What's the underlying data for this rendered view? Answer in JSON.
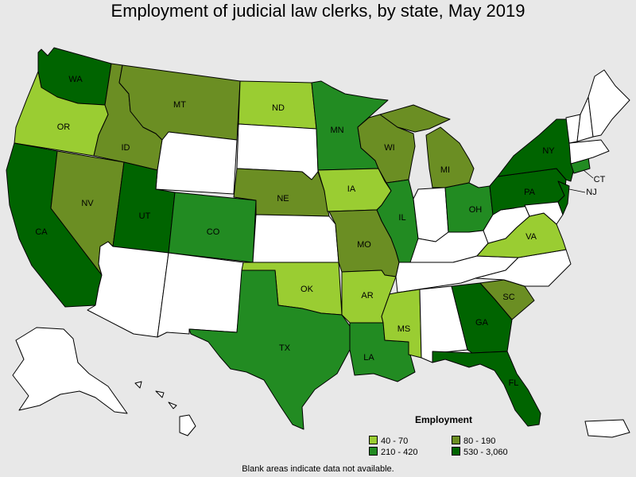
{
  "title": "Employment of judicial law clerks, by state, May 2019",
  "legend": {
    "title": "Employment",
    "items": [
      {
        "label": "40 - 70",
        "color": "#9acd32"
      },
      {
        "label": "80 - 190",
        "color": "#6b8e23"
      },
      {
        "label": "210 - 420",
        "color": "#228b22"
      },
      {
        "label": "530 - 3,060",
        "color": "#006400"
      }
    ]
  },
  "footnote": "Blank areas indicate data not available.",
  "states": {
    "WA": "WA",
    "OR": "OR",
    "CA": "CA",
    "NV": "NV",
    "ID": "ID",
    "MT": "MT",
    "UT": "UT",
    "CO": "CO",
    "ND": "ND",
    "NE": "NE",
    "MN": "MN",
    "IA": "IA",
    "WI": "WI",
    "IL": "IL",
    "MI": "MI",
    "MO": "MO",
    "OK": "OK",
    "AR": "AR",
    "TX": "TX",
    "LA": "LA",
    "MS": "MS",
    "OH": "OH",
    "NY": "NY",
    "PA": "PA",
    "NJ": "NJ",
    "CT": "CT",
    "VA": "VA",
    "GA": "GA",
    "SC": "SC",
    "FL": "FL"
  }
}
